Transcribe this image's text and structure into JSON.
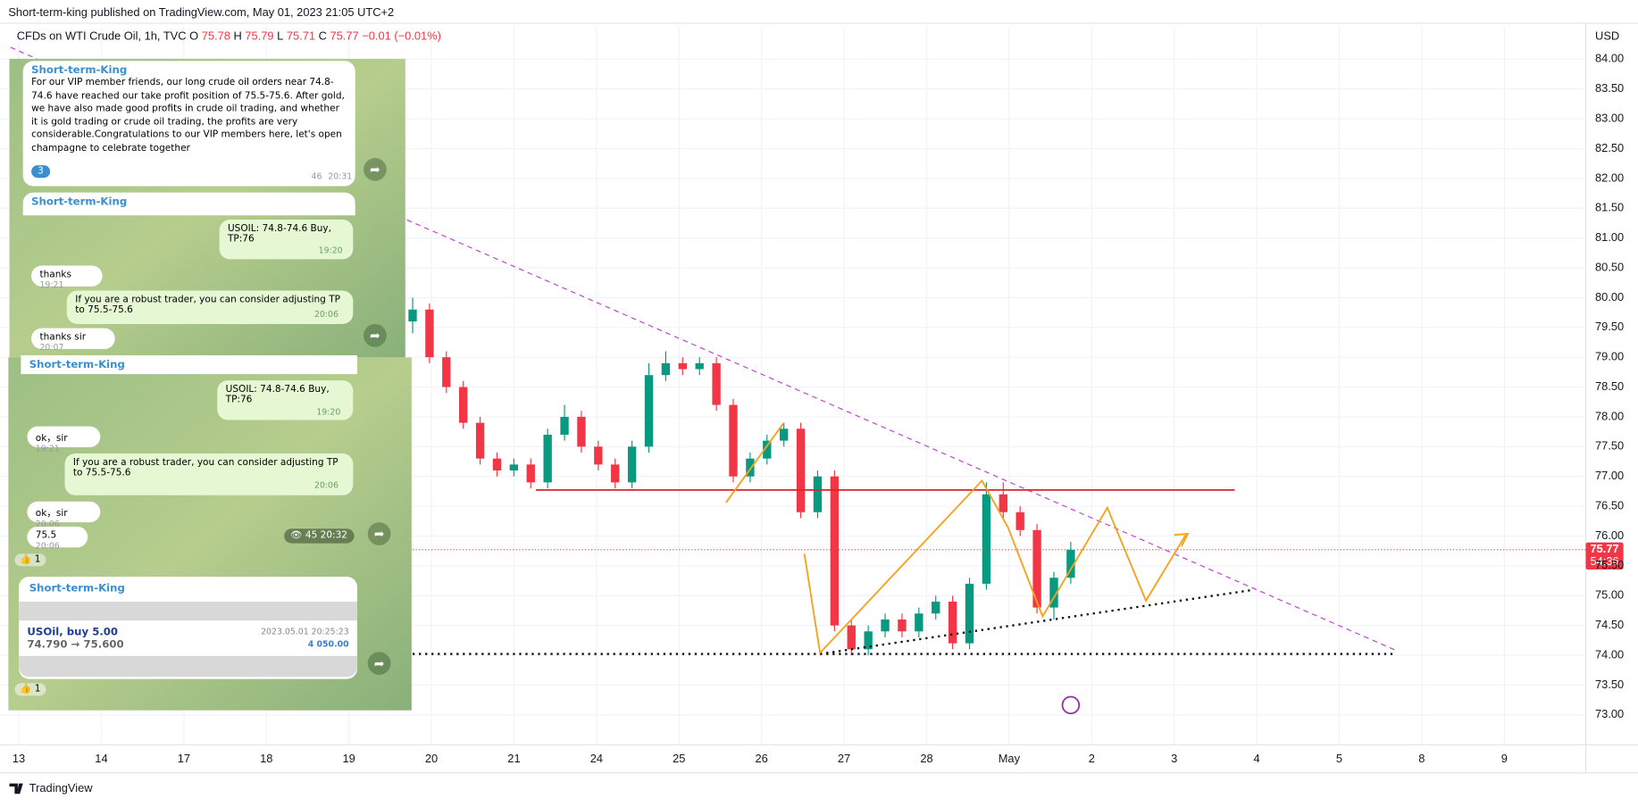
{
  "header": {
    "published": "Short-term-king published on TradingView.com, May 01, 2023 21:05 UTC+2",
    "brand": "TradingView"
  },
  "chart_data": {
    "type": "candlestick",
    "symbol": "CFDs on WTI Crude Oil, 1h, TVC",
    "legend": {
      "o_label": "O",
      "o": 75.78,
      "h_label": "H",
      "h": 75.79,
      "l_label": "L",
      "l": 75.71,
      "c_label": "C",
      "c": 75.77,
      "change": "−0.01 (−0.01%)"
    },
    "currency": "USD",
    "countdown": "54:36",
    "categories": [
      "13",
      "14",
      "17",
      "18",
      "19",
      "20",
      "21",
      "24",
      "25",
      "26",
      "27",
      "28",
      "May",
      "2",
      "3",
      "4",
      "5",
      "8",
      "9"
    ],
    "ylim": [
      72.55,
      84.2
    ],
    "yticks": [
      {
        "value": 73,
        "label": "73.00"
      },
      {
        "value": 73.5,
        "label": "73.50"
      },
      {
        "value": 74,
        "label": "74.00"
      },
      {
        "value": 74.5,
        "label": "74.50"
      },
      {
        "value": 75,
        "label": "75.00"
      },
      {
        "value": 75.5,
        "label": "75.50"
      },
      {
        "value": 76,
        "label": "76.00"
      },
      {
        "value": 76.5,
        "label": "76.50"
      },
      {
        "value": 77,
        "label": "77.00"
      },
      {
        "value": 77.5,
        "label": "77.50"
      },
      {
        "value": 78,
        "label": "78.00"
      },
      {
        "value": 78.5,
        "label": "78.50"
      },
      {
        "value": 79,
        "label": "79.00"
      },
      {
        "value": 79.5,
        "label": "79.50"
      },
      {
        "value": 80,
        "label": "80.00"
      },
      {
        "value": 80.5,
        "label": "80.50"
      },
      {
        "value": 81,
        "label": "81.00"
      },
      {
        "value": 81.5,
        "label": "81.50"
      },
      {
        "value": 82,
        "label": "82.00"
      },
      {
        "value": 82.5,
        "label": "82.50"
      },
      {
        "value": 83,
        "label": "83.00"
      },
      {
        "value": 83.5,
        "label": "83.50"
      },
      {
        "value": 84,
        "label": "84.00"
      }
    ],
    "grid": true,
    "up_color": "#089981",
    "down_color": "#f23645",
    "series": {
      "open": [
        79.6,
        79.8,
        79.0,
        78.5,
        77.9,
        77.3,
        77.1,
        77.2,
        76.9,
        77.7,
        78.0,
        77.5,
        77.2,
        76.9,
        77.5,
        78.7,
        78.9,
        78.8,
        78.9,
        78.2,
        77.0,
        77.3,
        77.6,
        77.8,
        76.4,
        77.0,
        74.5,
        74.1,
        74.4,
        74.6,
        74.4,
        74.7,
        74.9,
        74.2,
        75.2,
        76.7,
        76.4,
        76.1,
        74.8,
        75.3
      ],
      "high": [
        80.0,
        79.9,
        79.1,
        78.6,
        78.0,
        77.4,
        77.3,
        77.3,
        77.8,
        78.2,
        78.1,
        77.6,
        77.3,
        77.6,
        78.9,
        79.1,
        79.0,
        79.0,
        79.0,
        78.3,
        77.4,
        77.7,
        77.9,
        77.9,
        77.1,
        77.1,
        74.6,
        74.5,
        74.7,
        74.7,
        74.8,
        75.0,
        75.0,
        75.3,
        76.9,
        76.9,
        76.5,
        76.2,
        75.4,
        75.9
      ],
      "low": [
        79.4,
        78.9,
        78.4,
        77.8,
        77.2,
        77.0,
        77.0,
        76.8,
        76.8,
        77.6,
        77.4,
        77.1,
        76.8,
        76.8,
        77.4,
        78.6,
        78.7,
        78.7,
        78.1,
        76.9,
        76.9,
        77.2,
        77.5,
        76.3,
        76.3,
        74.4,
        74.0,
        74.0,
        74.3,
        74.3,
        74.3,
        74.6,
        74.1,
        74.1,
        75.1,
        76.3,
        76.0,
        74.7,
        74.6,
        75.2
      ],
      "close": [
        79.8,
        79.0,
        78.5,
        77.9,
        77.3,
        77.1,
        77.2,
        76.9,
        77.7,
        78.0,
        77.5,
        77.2,
        76.9,
        77.5,
        78.7,
        78.9,
        78.8,
        78.9,
        78.2,
        77.0,
        77.3,
        77.6,
        77.8,
        76.4,
        77.0,
        74.5,
        74.1,
        74.4,
        74.6,
        74.4,
        74.7,
        74.9,
        74.2,
        75.2,
        76.7,
        76.4,
        76.1,
        74.8,
        75.3,
        75.77
      ]
    }
  },
  "overlays": {
    "p1": {
      "name": "Short-term-King",
      "text": "For our VIP member friends, our long crude oil orders near 74.8-74.6 have reached our take profit position of 75.5-75.6. After gold, we have also made good profits in crude oil trading, and whether it is gold trading or crude oil trading, the profits are very considerable.Congratulations to our VIP members here, let's open champagne to celebrate together",
      "reactions": "3",
      "views": "46",
      "time": "20:31"
    },
    "p2": {
      "name": "Short-term-King",
      "signal": "USOIL:  74.8-74.6 Buy,    TP:76",
      "signal_time": "19:20",
      "m1": "thanks",
      "m1_time": "19:21",
      "m2": "If you are a robust trader, you can consider adjusting TP to 75.5-75.6",
      "m2_time": "20:06",
      "m3": "thanks sir",
      "m3_time": "20:07"
    },
    "p3": {
      "name": "Short-term-King",
      "signal": "USOIL:  74.8-74.6 Buy,    TP:76",
      "signal_time": "19:20",
      "m1": "ok，sir",
      "m1_time": "19:21",
      "m2": "If you are a robust trader, you can consider adjusting TP to 75.5-75.6",
      "m2_time": "20:06",
      "m3": "ok，sir",
      "m3_time": "20:06",
      "m4": "75.5",
      "m4_time": "20:06",
      "views": "45",
      "time": "20:32",
      "likes": "1"
    },
    "p4": {
      "name": "Short-term-King",
      "trade": "USOil, buy 5.00",
      "date": "2023.05.01 20:25:23",
      "prices": "74.790 → 75.600",
      "profit": "4 050.00",
      "likes": "1"
    }
  }
}
